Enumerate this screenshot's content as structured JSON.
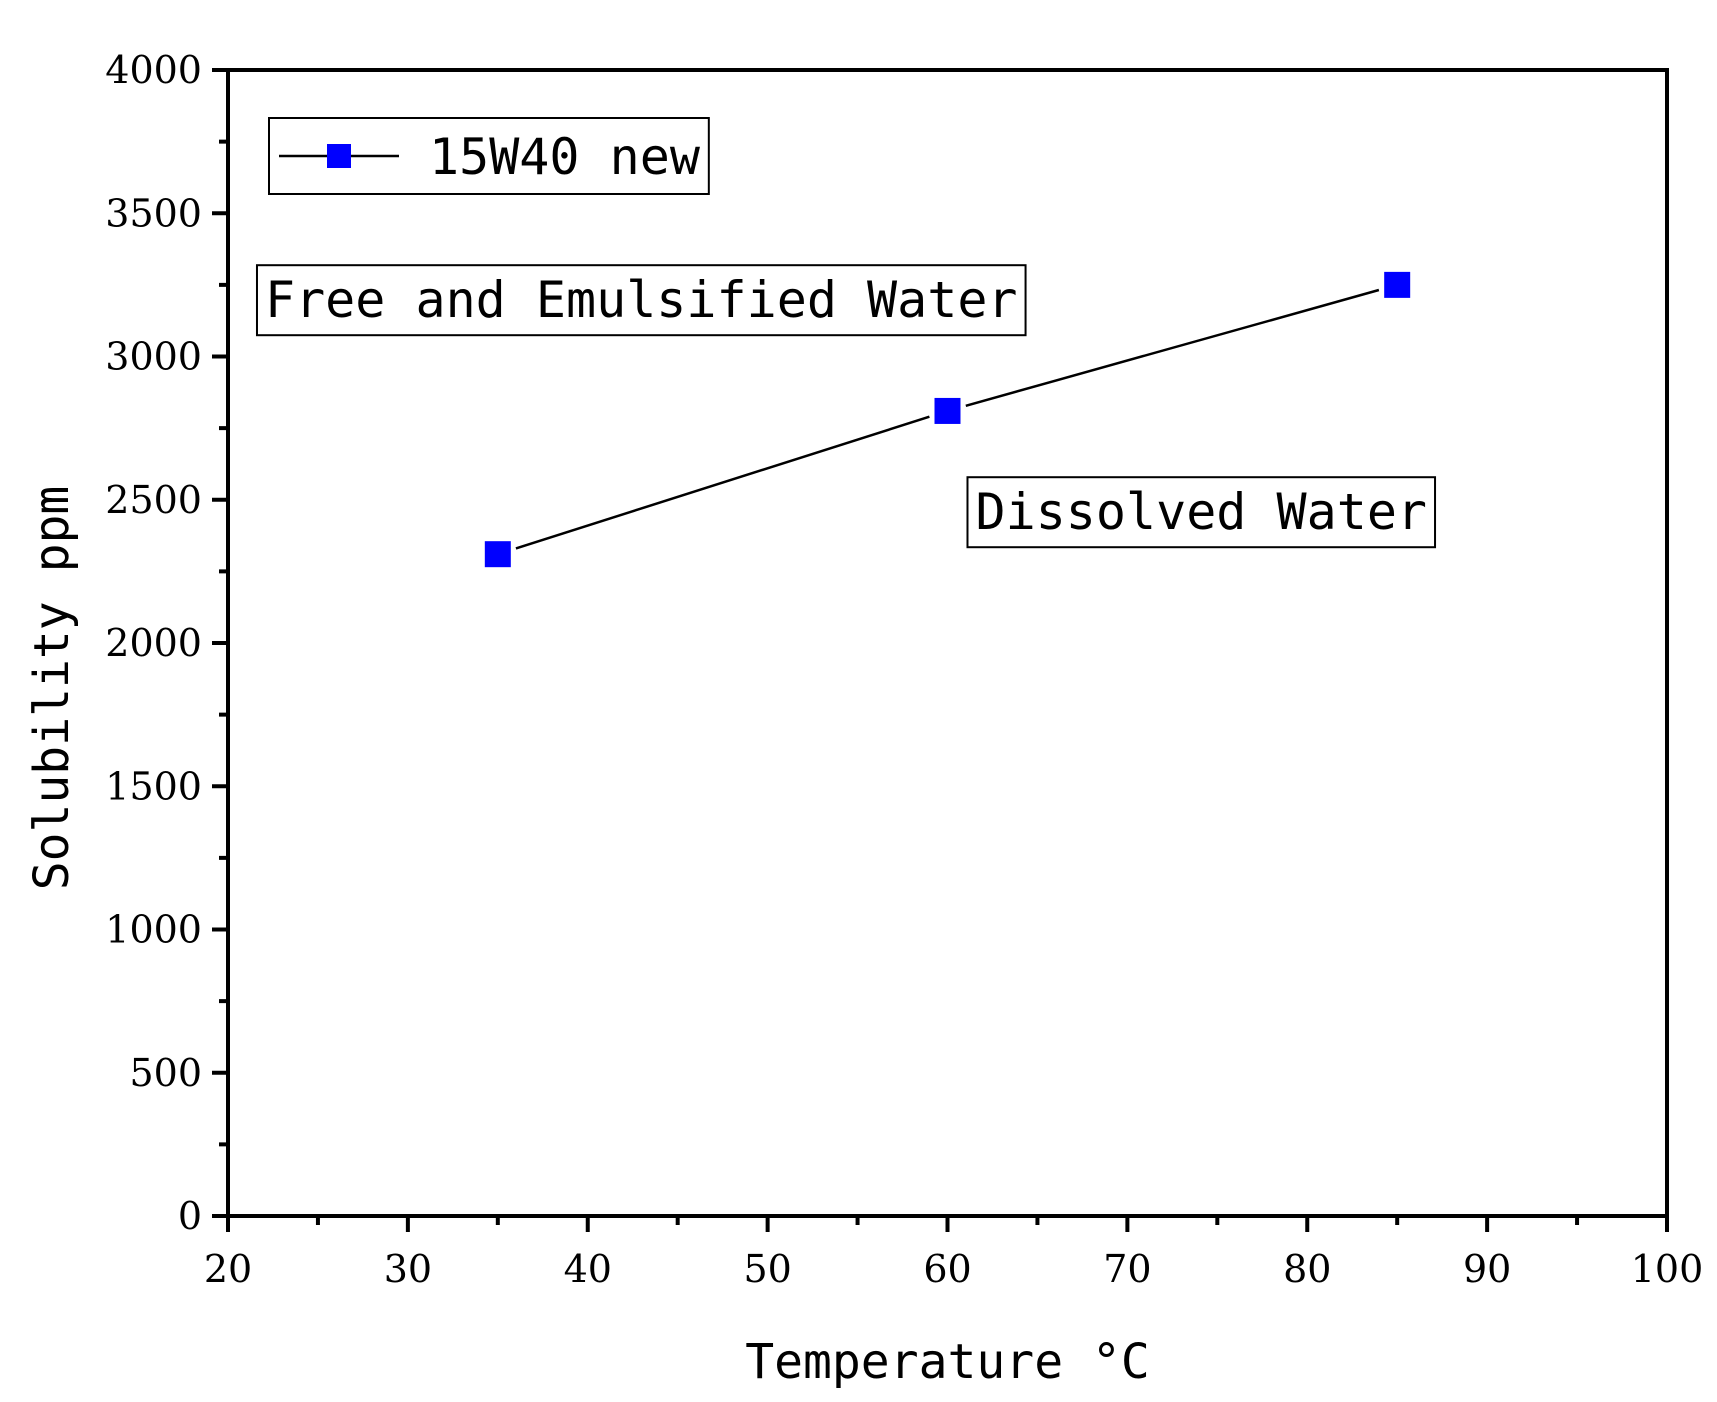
{
  "chart_data": {
    "type": "line",
    "xlabel": "Temperature °C",
    "ylabel": "Solubility ppm",
    "xlim": [
      20,
      100
    ],
    "ylim": [
      0,
      4000
    ],
    "x_ticks": [
      20,
      30,
      40,
      50,
      60,
      70,
      80,
      90,
      100
    ],
    "x_tick_labels": [
      "20",
      "30",
      "40",
      "50",
      "60",
      "70",
      "80",
      "90",
      "100"
    ],
    "y_ticks": [
      0,
      500,
      1000,
      1500,
      2000,
      2500,
      3000,
      3500,
      4000
    ],
    "y_tick_labels": [
      "0",
      "500",
      "1000",
      "1500",
      "2000",
      "2500",
      "3000",
      "3500",
      "4000"
    ],
    "grid": false,
    "legend_position": "top-left",
    "series": [
      {
        "name": "15W40 new",
        "marker": "square",
        "color": "#0000ff",
        "line_color": "#000000",
        "x": [
          35,
          60,
          85
        ],
        "y": [
          2310,
          2810,
          3250
        ]
      }
    ],
    "annotations": [
      {
        "text": "Free and Emulsified Water",
        "x": 21.5,
        "y": 3200
      },
      {
        "text": "Dissolved Water",
        "x": 61,
        "y": 2460
      }
    ]
  }
}
